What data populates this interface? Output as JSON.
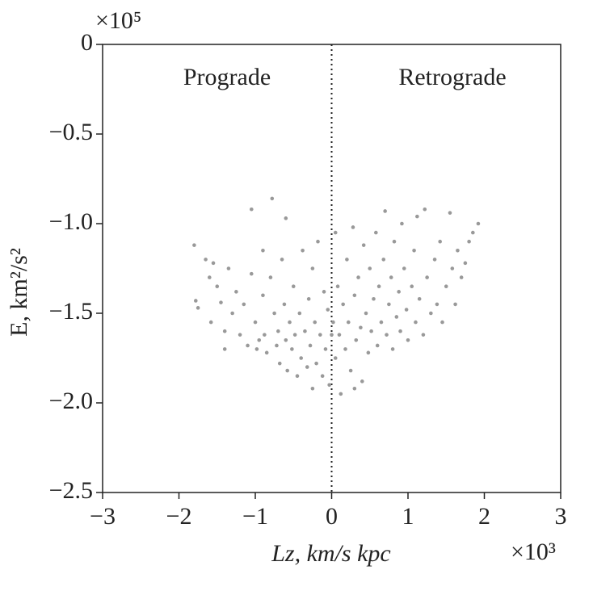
{
  "chart_data": {
    "type": "scatter",
    "y_offset_label": "×10⁵",
    "x_offset_label": "×10³",
    "x_label": "Lz, km/s kpc",
    "y_label": "E, km²/s²",
    "annotations": [
      "Prograde",
      "Retrograde"
    ],
    "vline_x": 0,
    "xlim": [
      -3,
      3
    ],
    "ylim": [
      -2.5,
      0
    ],
    "xticks": [
      {
        "value": -3,
        "label": "−3"
      },
      {
        "value": -2,
        "label": "−2"
      },
      {
        "value": -1,
        "label": "−1"
      },
      0,
      1,
      2,
      3
    ],
    "yticks": [
      0,
      {
        "value": -0.5,
        "label": "−0.5"
      },
      {
        "value": -1.0,
        "label": "−1.0"
      },
      {
        "value": -1.5,
        "label": "−1.5"
      },
      {
        "value": -2.0,
        "label": "−2.0"
      },
      {
        "value": -2.5,
        "label": "−2.5"
      }
    ],
    "series": [
      {
        "color": "#999999",
        "x": [
          -1.8,
          -1.78,
          -1.75,
          -1.65,
          -1.6,
          -1.58,
          -1.55,
          -1.5,
          -1.45,
          -1.4,
          -1.35,
          -1.3,
          -1.25,
          -1.2,
          -1.15,
          -1.1,
          -1.05,
          -1.05,
          -1.0,
          -0.98,
          -0.95,
          -0.9,
          -0.88,
          -0.85,
          -0.8,
          -0.78,
          -0.75,
          -0.72,
          -0.7,
          -0.68,
          -0.65,
          -0.62,
          -0.6,
          -0.6,
          -0.58,
          -0.55,
          -0.52,
          -0.5,
          -0.48,
          -0.45,
          -0.42,
          -0.4,
          -0.38,
          -0.35,
          -0.32,
          -0.3,
          -0.28,
          -0.25,
          -0.22,
          -0.2,
          -0.18,
          -0.15,
          -0.12,
          -0.1,
          -0.08,
          -0.05,
          -0.03,
          0.02,
          0.05,
          0.05,
          0.08,
          0.1,
          0.12,
          0.15,
          0.18,
          0.2,
          0.22,
          0.25,
          0.28,
          0.3,
          0.32,
          0.35,
          0.38,
          0.4,
          0.42,
          0.45,
          0.48,
          0.5,
          0.52,
          0.55,
          0.58,
          0.6,
          0.62,
          0.65,
          0.68,
          0.7,
          0.72,
          0.75,
          0.78,
          0.8,
          0.82,
          0.85,
          0.88,
          0.9,
          0.92,
          0.95,
          0.98,
          1.0,
          1.05,
          1.08,
          1.1,
          1.12,
          1.15,
          1.2,
          1.22,
          1.25,
          1.3,
          1.35,
          1.38,
          1.42,
          1.45,
          1.5,
          1.55,
          1.58,
          1.62,
          1.65,
          1.7,
          1.75,
          1.8,
          1.85,
          1.92,
          -1.4,
          -0.9,
          0.0,
          0.3,
          -0.25
        ],
        "values": [
          -1.12,
          -1.43,
          -1.47,
          -1.2,
          -1.3,
          -1.55,
          -1.22,
          -1.35,
          -1.44,
          -1.6,
          -1.25,
          -1.5,
          -1.38,
          -1.62,
          -1.45,
          -1.68,
          -0.92,
          -1.28,
          -1.55,
          -1.7,
          -1.65,
          -1.4,
          -1.62,
          -1.72,
          -1.3,
          -0.86,
          -1.5,
          -1.68,
          -1.6,
          -1.78,
          -1.2,
          -1.45,
          -1.65,
          -0.97,
          -1.82,
          -1.55,
          -1.7,
          -1.35,
          -1.62,
          -1.85,
          -1.5,
          -1.75,
          -1.15,
          -1.6,
          -1.8,
          -1.42,
          -1.68,
          -1.25,
          -1.55,
          -1.78,
          -1.1,
          -1.62,
          -1.85,
          -1.38,
          -1.7,
          -1.48,
          -1.9,
          -1.55,
          -1.05,
          -1.75,
          -1.35,
          -1.62,
          -1.95,
          -1.45,
          -1.7,
          -1.2,
          -1.55,
          -1.82,
          -1.02,
          -1.4,
          -1.65,
          -1.3,
          -1.58,
          -1.88,
          -1.12,
          -1.5,
          -1.72,
          -1.25,
          -1.6,
          -1.42,
          -1.05,
          -1.68,
          -1.35,
          -1.55,
          -1.2,
          -0.93,
          -1.62,
          -1.45,
          -1.3,
          -1.7,
          -1.1,
          -1.52,
          -1.38,
          -1.6,
          -1.0,
          -1.25,
          -1.48,
          -1.65,
          -1.35,
          -1.15,
          -1.55,
          -0.96,
          -1.42,
          -1.62,
          -0.92,
          -1.3,
          -1.5,
          -1.2,
          -1.45,
          -1.1,
          -1.55,
          -1.35,
          -0.94,
          -1.25,
          -1.45,
          -1.15,
          -1.3,
          -1.22,
          -1.1,
          -1.05,
          -1.0,
          -1.7,
          -1.15,
          -1.62,
          -1.92,
          -1.92
        ]
      }
    ]
  }
}
